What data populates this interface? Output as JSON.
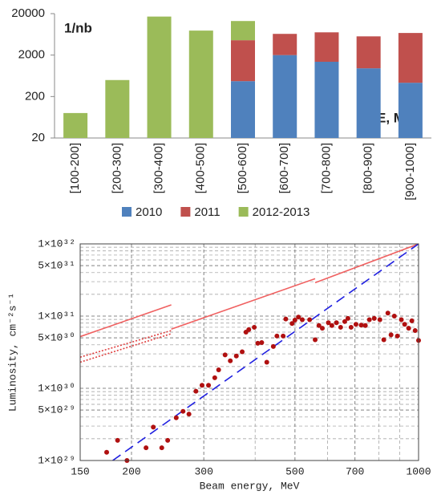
{
  "chart_data": [
    {
      "type": "bar",
      "stacked": true,
      "log_scale": true,
      "annotations": [
        "1/nb",
        "E, MeV"
      ],
      "categories": [
        "[100-200]",
        "[200-300]",
        "[300-400]",
        "[400-500]",
        "[500-600]",
        "[600-700]",
        "[700-800]",
        "[800-900]",
        "[900-1000]"
      ],
      "series": [
        {
          "name": "2010",
          "color": "#4f81bd",
          "values": [
            null,
            null,
            null,
            null,
            470,
            2000,
            1380,
            960,
            430
          ]
        },
        {
          "name": "2011",
          "color": "#c0504d",
          "values": [
            null,
            null,
            null,
            null,
            4100,
            4500,
            5700,
            4700,
            6400
          ]
        },
        {
          "name": "2012-2013",
          "color": "#9bbb59",
          "values": [
            80,
            500,
            17000,
            7800,
            8700,
            null,
            null,
            null,
            null
          ]
        }
      ],
      "ylim": [
        20,
        20000
      ],
      "yticks": [
        20,
        200,
        2000,
        20000
      ],
      "legend": "bottom"
    },
    {
      "type": "scatter",
      "log_scale": true,
      "grid": true,
      "x_label": "Beam energy, MeV",
      "y_label": "Luminosity, cm⁻²s⁻¹",
      "xlim": [
        150,
        1000
      ],
      "xticks": [
        150,
        200,
        300,
        500,
        700,
        1000
      ],
      "ylim": [
        1e+29,
        1e+32
      ],
      "yticks": [
        {
          "value": 1e+29,
          "label": "1×10²⁹"
        },
        {
          "value": 5e+29,
          "label": "5×10²⁹"
        },
        {
          "value": 1e+30,
          "label": "1×10³⁰"
        },
        {
          "value": 5e+30,
          "label": "5×10³⁰"
        },
        {
          "value": 1e+31,
          "label": "1×10³¹"
        },
        {
          "value": 5e+31,
          "label": "5×10³¹"
        },
        {
          "value": 1e+32,
          "label": "1×10³²"
        }
      ],
      "series": [
        {
          "mark": "line",
          "dash": "solid",
          "color": "#f06060",
          "x": [
            150,
            250
          ],
          "values": [
            5.2e+30,
            1.43e+31
          ]
        },
        {
          "mark": "line",
          "dash": "dotted",
          "color": "#e04040",
          "x": [
            150,
            250
          ],
          "values": [
            2.7e+30,
            6.3e+30
          ]
        },
        {
          "mark": "line",
          "dash": "dotted",
          "color": "#e04040",
          "x": [
            150,
            250
          ],
          "values": [
            2.3e+30,
            5.7e+30
          ]
        },
        {
          "mark": "line",
          "dash": "solid",
          "color": "#f06060",
          "x": [
            250,
            560
          ],
          "values": [
            6.6e+30,
            3.3e+31
          ]
        },
        {
          "mark": "line",
          "dash": "solid",
          "color": "#f06060",
          "x": [
            560,
            1000
          ],
          "values": [
            2.9e+31,
            1e+32
          ]
        },
        {
          "mark": "line",
          "dash": "dashed",
          "color": "#2020e0",
          "x": [
            180,
            1000
          ],
          "values": [
            1e+29,
            1e+32
          ]
        },
        {
          "mark": "dot",
          "color": "#b01010",
          "x": [
            174,
            185,
            195,
            217,
            226,
            237,
            245,
            257,
            267,
            276,
            287,
            297,
            308,
            319,
            326,
            338,
            348,
            360,
            372,
            380,
            386,
            398,
            406,
            415,
            427,
            443,
            452,
            468,
            475,
            492,
            500,
            510,
            521,
            543,
            560,
            572,
            583,
            603,
            615,
            631,
            646,
            661,
            673,
            685,
            704,
            725,
            742,
            759,
            780,
            805,
            823,
            842,
            857,
            873,
            888,
            908,
            925,
            946,
            963,
            981,
            1000
          ],
          "values": [
            1.3e+29,
            1.9e+29,
            1e+29,
            1.5e+29,
            2.9e+29,
            1.5e+29,
            1.9e+29,
            3.9e+29,
            4.8e+29,
            4.4e+29,
            9.1e+29,
            1.1e+30,
            1.1e+30,
            1.4e+30,
            1.8e+30,
            2.9e+30,
            2.4e+30,
            2.8e+30,
            3.2e+30,
            6e+30,
            6.5e+30,
            7e+30,
            4.2e+30,
            4.3e+30,
            2.3e+30,
            3.8e+30,
            5.3e+30,
            5.3e+30,
            9.1e+30,
            7.9e+30,
            8.8e+30,
            9.7e+30,
            8.9e+30,
            8.9e+30,
            4.7e+30,
            7.4e+30,
            6.8e+30,
            8.1e+30,
            7.4e+30,
            8.1e+30,
            7e+30,
            8.4e+30,
            9.3e+30,
            7e+30,
            7.7e+30,
            7.5e+30,
            7.4e+30,
            8.9e+30,
            9.3e+30,
            8.9e+30,
            4.7e+30,
            1.1e+31,
            5.5e+30,
            1e+31,
            5.3e+30,
            8.9e+30,
            7.7e+30,
            6.8e+30,
            8.6e+30,
            6.3e+30,
            4.6e+30
          ]
        }
      ]
    }
  ]
}
